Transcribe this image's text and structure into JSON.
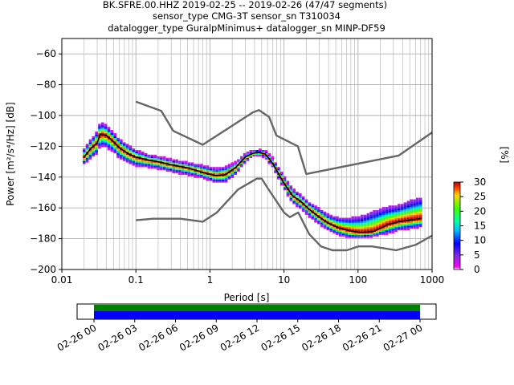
{
  "title": {
    "line1": "BK.SFRE.00.HHZ   2019-02-25 -- 2019-02-26  (47/47 segments)",
    "line2": "sensor_type CMG-3T sensor_sn T310034",
    "line3": "datalogger_type GuralpMinimus+ datalogger_sn MINP-DF59"
  },
  "colorbar": {
    "label": "[%]",
    "ticks": [
      "0",
      "5",
      "10",
      "15",
      "20",
      "25",
      "30"
    ],
    "range": [
      0,
      30
    ]
  },
  "colors": {
    "noise_model": "#666666",
    "mean_curve": "#000000",
    "coverage_top": "#008000",
    "coverage_bottom": "#0000ff"
  },
  "chart_data": [
    {
      "type": "line",
      "xlabel": "Period [s]",
      "ylabel": "Power [m²/s⁴/Hz] [dB]",
      "xscale": "log",
      "xlim": [
        0.01,
        1000
      ],
      "ylim": [
        -200,
        -50
      ],
      "xticks": [
        "0.01",
        "0.1",
        "1",
        "10",
        "100",
        "1000"
      ],
      "yticks": [
        "−200",
        "−180",
        "−160",
        "−140",
        "−120",
        "−100",
        "−80",
        "−60"
      ],
      "grid": true,
      "series": [
        {
          "role": "high-noise-model",
          "points": [
            [
              0.1,
              -91
            ],
            [
              0.22,
              -97
            ],
            [
              0.32,
              -110
            ],
            [
              0.8,
              -119
            ],
            [
              3.8,
              -98
            ],
            [
              4.6,
              -96.5
            ],
            [
              6.3,
              -101
            ],
            [
              7.9,
              -113
            ],
            [
              15.4,
              -120
            ],
            [
              20,
              -138
            ],
            [
              354.8,
              -126
            ],
            [
              1000,
              -111
            ]
          ]
        },
        {
          "role": "low-noise-model",
          "points": [
            [
              0.1,
              -168
            ],
            [
              0.17,
              -167
            ],
            [
              0.4,
              -167
            ],
            [
              0.8,
              -169
            ],
            [
              1.24,
              -163
            ],
            [
              2.4,
              -148
            ],
            [
              4.3,
              -141
            ],
            [
              5.0,
              -141
            ],
            [
              6.0,
              -147
            ],
            [
              10,
              -163
            ],
            [
              12,
              -166
            ],
            [
              15.6,
              -163
            ],
            [
              21.9,
              -177
            ],
            [
              31.6,
              -185
            ],
            [
              45,
              -187.5
            ],
            [
              70.8,
              -187.5
            ],
            [
              101,
              -185
            ],
            [
              154,
              -185
            ],
            [
              328,
              -187.5
            ],
            [
              600,
              -184
            ],
            [
              1000,
              -178
            ]
          ]
        },
        {
          "role": "mean-psd",
          "points": [
            [
              0.02,
              -127
            ],
            [
              0.025,
              -121
            ],
            [
              0.03,
              -118
            ],
            [
              0.033,
              -112
            ],
            [
              0.04,
              -113
            ],
            [
              0.05,
              -117
            ],
            [
              0.06,
              -121
            ],
            [
              0.08,
              -125
            ],
            [
              0.1,
              -127
            ],
            [
              0.15,
              -129
            ],
            [
              0.2,
              -130
            ],
            [
              0.3,
              -132
            ],
            [
              0.5,
              -134
            ],
            [
              0.8,
              -137
            ],
            [
              1.2,
              -139
            ],
            [
              1.6,
              -138.5
            ],
            [
              2.2,
              -134
            ],
            [
              3.0,
              -127
            ],
            [
              3.8,
              -124.5
            ],
            [
              4.6,
              -124
            ],
            [
              5.6,
              -125
            ],
            [
              7,
              -131
            ],
            [
              10,
              -144
            ],
            [
              13,
              -152
            ],
            [
              17,
              -156
            ],
            [
              22,
              -161
            ],
            [
              30,
              -166
            ],
            [
              40,
              -170
            ],
            [
              55,
              -173
            ],
            [
              80,
              -175
            ],
            [
              110,
              -176
            ],
            [
              160,
              -175.5
            ],
            [
              250,
              -171
            ],
            [
              350,
              -169
            ],
            [
              500,
              -168
            ],
            [
              700,
              -167
            ]
          ]
        },
        {
          "role": "psd-histogram-upper",
          "points": [
            [
              0.02,
              -122
            ],
            [
              0.025,
              -116
            ],
            [
              0.03,
              -111
            ],
            [
              0.033,
              -105
            ],
            [
              0.04,
              -107
            ],
            [
              0.05,
              -112
            ],
            [
              0.06,
              -116
            ],
            [
              0.08,
              -120
            ],
            [
              0.1,
              -123
            ],
            [
              0.15,
              -126
            ],
            [
              0.2,
              -127
            ],
            [
              0.3,
              -129
            ],
            [
              0.5,
              -131
            ],
            [
              0.8,
              -133
            ],
            [
              1.2,
              -135
            ],
            [
              1.6,
              -134
            ],
            [
              2.2,
              -131
            ],
            [
              3.0,
              -125
            ],
            [
              3.8,
              -123
            ],
            [
              4.6,
              -122.5
            ],
            [
              5.6,
              -123
            ],
            [
              7,
              -128
            ],
            [
              10,
              -140
            ],
            [
              13,
              -148
            ],
            [
              17,
              -152
            ],
            [
              22,
              -157
            ],
            [
              30,
              -161
            ],
            [
              40,
              -165
            ],
            [
              55,
              -167
            ],
            [
              80,
              -167
            ],
            [
              110,
              -166
            ],
            [
              160,
              -163
            ],
            [
              250,
              -160
            ],
            [
              350,
              -159
            ],
            [
              500,
              -156
            ],
            [
              700,
              -154
            ]
          ]
        },
        {
          "role": "psd-histogram-lower",
          "points": [
            [
              0.02,
              -131
            ],
            [
              0.025,
              -127
            ],
            [
              0.03,
              -124
            ],
            [
              0.033,
              -119
            ],
            [
              0.04,
              -120
            ],
            [
              0.05,
              -123
            ],
            [
              0.06,
              -127
            ],
            [
              0.08,
              -130
            ],
            [
              0.1,
              -132
            ],
            [
              0.15,
              -133
            ],
            [
              0.2,
              -134
            ],
            [
              0.3,
              -136
            ],
            [
              0.5,
              -138
            ],
            [
              0.8,
              -140
            ],
            [
              1.2,
              -143
            ],
            [
              1.6,
              -143
            ],
            [
              2.2,
              -138
            ],
            [
              3.0,
              -130
            ],
            [
              3.8,
              -126
            ],
            [
              4.6,
              -125.5
            ],
            [
              5.6,
              -127
            ],
            [
              7,
              -133
            ],
            [
              10,
              -147
            ],
            [
              13,
              -156
            ],
            [
              17,
              -160
            ],
            [
              22,
              -165
            ],
            [
              30,
              -170
            ],
            [
              40,
              -174
            ],
            [
              55,
              -177
            ],
            [
              80,
              -179
            ],
            [
              110,
              -179
            ],
            [
              160,
              -178
            ],
            [
              250,
              -176
            ],
            [
              350,
              -174
            ],
            [
              500,
              -173
            ],
            [
              700,
              -172
            ]
          ]
        }
      ]
    },
    {
      "type": "bar",
      "role": "data-coverage",
      "xlim": [
        "02-26 00",
        "02-27 00"
      ],
      "xticks": [
        "02-26 00",
        "02-26 03",
        "02-26 06",
        "02-26 09",
        "02-26 12",
        "02-26 15",
        "02-26 18",
        "02-26 21",
        "02-27 00"
      ],
      "coverage_start_fraction": 0.0,
      "coverage_end_fraction": 1.0
    }
  ]
}
